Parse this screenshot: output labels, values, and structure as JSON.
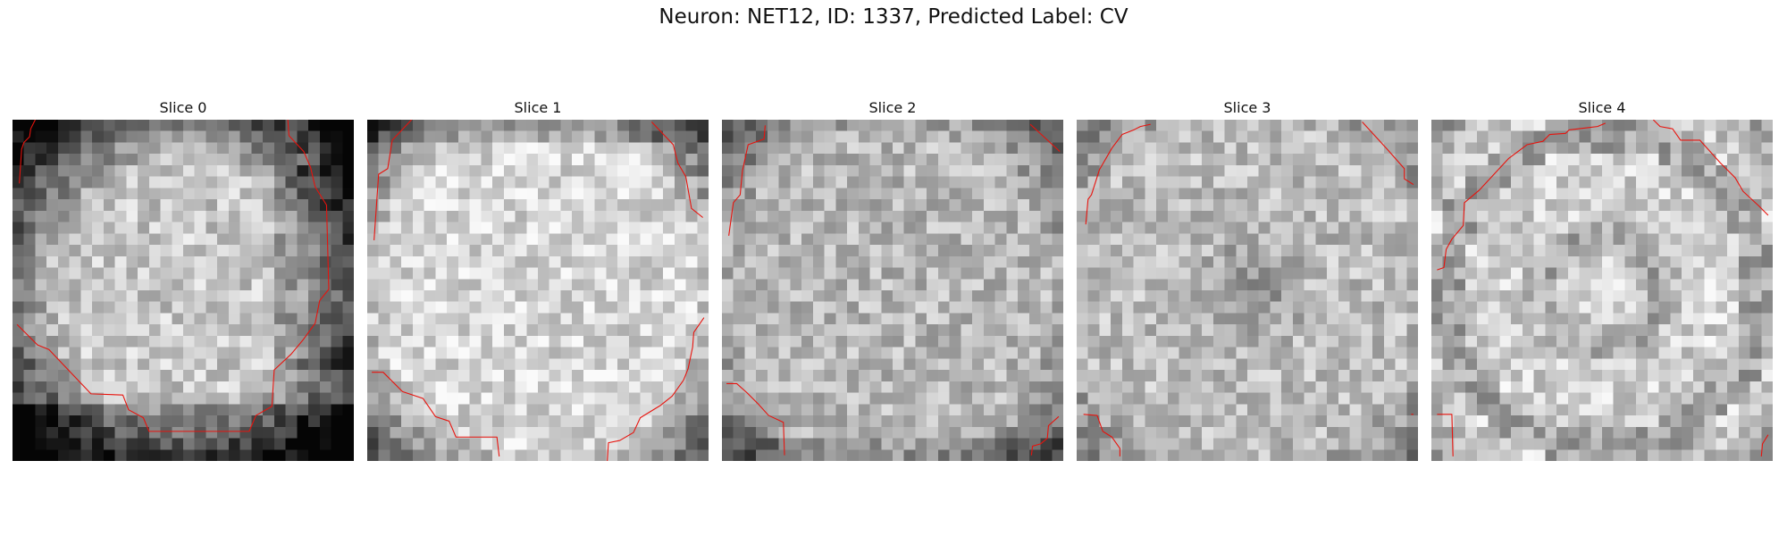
{
  "figure": {
    "title": "Neuron: NET12, ID: 1337, Predicted Label: CV",
    "contour_color": "#e8120c"
  },
  "grid_size": 30,
  "slices": [
    {
      "title": "Slice 0",
      "pattern": "bright-center-dark-rim-right",
      "contours": [
        [
          [
            2,
            0
          ],
          [
            1.6,
            0.8
          ],
          [
            1.5,
            1.5
          ],
          [
            1,
            2
          ],
          [
            0.8,
            2.6
          ],
          [
            0.6,
            5.6
          ]
        ],
        [
          [
            24.2,
            0
          ],
          [
            24.3,
            1.4
          ],
          [
            25.6,
            2.8
          ],
          [
            26.2,
            4.2
          ],
          [
            26.6,
            5.9
          ],
          [
            27.6,
            7.5
          ],
          [
            27.8,
            14.9
          ],
          [
            27,
            15.9
          ],
          [
            26.6,
            17.9
          ],
          [
            25.5,
            19.4
          ],
          [
            24.5,
            20.6
          ],
          [
            23,
            22
          ],
          [
            22.8,
            25.2
          ],
          [
            21.4,
            26
          ],
          [
            20.8,
            27.4
          ],
          [
            12,
            27.4
          ],
          [
            11.5,
            26.2
          ],
          [
            10.2,
            25.5
          ],
          [
            9.7,
            24.2
          ],
          [
            6.9,
            24.1
          ],
          [
            3.2,
            20.2
          ],
          [
            2.2,
            19.8
          ],
          [
            0.4,
            18
          ]
        ]
      ]
    },
    {
      "title": "Slice 1",
      "pattern": "bright-fill",
      "contours": [
        [
          [
            3.9,
            0
          ],
          [
            2.2,
            1.8
          ],
          [
            1.8,
            4.3
          ],
          [
            1,
            4.8
          ],
          [
            0.6,
            10.6
          ]
        ],
        [
          [
            25,
            0.2
          ],
          [
            26.9,
            2.2
          ],
          [
            27.3,
            3.8
          ],
          [
            28,
            5
          ],
          [
            28.5,
            7.8
          ],
          [
            29.5,
            8.6
          ]
        ],
        [
          [
            29.6,
            17.4
          ],
          [
            28.7,
            18.7
          ],
          [
            28.6,
            20
          ],
          [
            28.2,
            21.9
          ],
          [
            27.8,
            22.9
          ],
          [
            26.8,
            24.3
          ],
          [
            25.8,
            25.1
          ],
          [
            24,
            26.2
          ],
          [
            23.4,
            27.5
          ],
          [
            22.2,
            28.2
          ],
          [
            21.2,
            28.4
          ],
          [
            21.1,
            30
          ]
        ],
        [
          [
            0.4,
            22.2
          ],
          [
            1.4,
            22.2
          ],
          [
            3.1,
            23.9
          ],
          [
            4.9,
            24.5
          ],
          [
            6,
            26.1
          ],
          [
            7.2,
            26.5
          ],
          [
            7.8,
            27.9
          ],
          [
            11.4,
            27.9
          ],
          [
            11.6,
            29.6
          ]
        ]
      ]
    },
    {
      "title": "Slice 2",
      "pattern": "noise-mid",
      "contours": [
        [
          [
            3.8,
            0.5
          ],
          [
            3.7,
            1.7
          ],
          [
            2.3,
            2.2
          ],
          [
            1.8,
            4.5
          ],
          [
            1.6,
            6.6
          ],
          [
            1,
            7.3
          ],
          [
            0.6,
            10.2
          ]
        ],
        [
          [
            27.1,
            0.4
          ],
          [
            29.7,
            2.8
          ]
        ],
        [
          [
            0.4,
            23.2
          ],
          [
            1.3,
            23.2
          ],
          [
            2.2,
            24
          ],
          [
            3.2,
            25
          ],
          [
            4.1,
            26
          ],
          [
            5.4,
            26.6
          ],
          [
            5.5,
            29.5
          ]
        ],
        [
          [
            29.6,
            26.1
          ],
          [
            28.7,
            26.9
          ],
          [
            28.6,
            28
          ],
          [
            28,
            28.5
          ],
          [
            27.3,
            28.7
          ],
          [
            27.2,
            29.5
          ]
        ]
      ]
    },
    {
      "title": "Slice 3",
      "pattern": "dark-center",
      "contours": [
        [
          [
            6.5,
            0.4
          ],
          [
            5.6,
            0.6
          ],
          [
            5,
            0.9
          ],
          [
            4,
            1.3
          ],
          [
            3.1,
            2.5
          ],
          [
            2,
            4.4
          ],
          [
            1.3,
            6.6
          ],
          [
            1,
            7
          ],
          [
            0.8,
            9.2
          ]
        ],
        [
          [
            25.1,
            0.2
          ],
          [
            27.3,
            2.6
          ],
          [
            28.8,
            4.3
          ],
          [
            28.8,
            5.2
          ],
          [
            29.6,
            5.7
          ]
        ],
        [
          [
            0.6,
            25.9
          ],
          [
            1.8,
            26
          ],
          [
            2.3,
            27.4
          ],
          [
            3.1,
            27.9
          ],
          [
            3.8,
            28.9
          ],
          [
            3.8,
            29.6
          ]
        ],
        [
          [
            29.4,
            25.9
          ],
          [
            29.6,
            25.9
          ]
        ]
      ]
    },
    {
      "title": "Slice 4",
      "pattern": "ring",
      "contours": [
        [
          [
            0.5,
            13.2
          ],
          [
            1.1,
            13
          ],
          [
            1.3,
            11.4
          ],
          [
            1.8,
            10.5
          ],
          [
            2.8,
            9.3
          ],
          [
            2.9,
            7.3
          ],
          [
            4.2,
            6.2
          ],
          [
            5.5,
            4.8
          ],
          [
            6.8,
            3.4
          ],
          [
            8.4,
            2.2
          ],
          [
            9.8,
            1.9
          ],
          [
            10.4,
            1.3
          ],
          [
            11.8,
            1.2
          ],
          [
            12.1,
            0.9
          ],
          [
            14.6,
            0.6
          ],
          [
            15.3,
            0.3
          ]
        ],
        [
          [
            19.5,
            0
          ],
          [
            20.1,
            0.6
          ],
          [
            21.2,
            0.8
          ],
          [
            21.9,
            1.8
          ],
          [
            23.6,
            1.8
          ],
          [
            25.4,
            3.8
          ],
          [
            26.7,
            5.1
          ],
          [
            27.4,
            6.3
          ],
          [
            28.8,
            7.6
          ],
          [
            29.6,
            8.4
          ]
        ],
        [
          [
            0.5,
            25.9
          ],
          [
            1.8,
            25.9
          ],
          [
            1.9,
            29.6
          ]
        ],
        [
          [
            29.6,
            27.7
          ],
          [
            29.1,
            28.5
          ],
          [
            29,
            29.6
          ]
        ]
      ]
    }
  ]
}
